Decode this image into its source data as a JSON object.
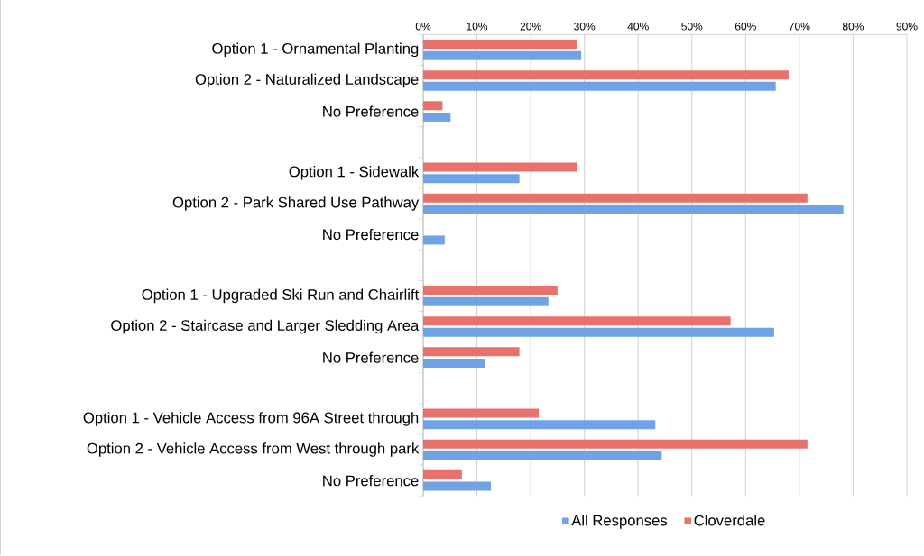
{
  "chart_data": {
    "type": "bar",
    "orientation": "horizontal",
    "categories": [
      "Option 1 - Ornamental Planting",
      "Option 2 - Naturalized Landscape",
      "No Preference",
      null,
      "Option 1 - Sidewalk",
      "Option 2 - Park Shared Use Pathway",
      "No Preference",
      null,
      "Option 1 - Upgraded Ski Run and Chairlift",
      "Option 2 - Staircase and Larger Sledding Area",
      "No Preference",
      null,
      "Option 1 - Vehicle Access from 96A Street through",
      "Option 2 - Vehicle Access from West through park",
      "No Preference"
    ],
    "series": [
      {
        "name": "All Responses",
        "color": "#6fa3e6",
        "values": [
          29.4,
          65.6,
          5.1,
          null,
          17.9,
          78.2,
          4.0,
          null,
          23.3,
          65.3,
          11.5,
          null,
          43.2,
          44.4,
          12.6
        ]
      },
      {
        "name": "Cloverdale",
        "color": "#e8716c",
        "values": [
          28.6,
          68.0,
          3.6,
          null,
          28.6,
          71.5,
          0,
          null,
          25.0,
          57.2,
          17.9,
          null,
          21.5,
          71.5,
          7.2
        ]
      }
    ],
    "xlim": [
      0,
      90
    ],
    "xticks": [
      {
        "value": 0,
        "label": "0%"
      },
      {
        "value": 10,
        "label": "10%"
      },
      {
        "value": 20,
        "label": "20%"
      },
      {
        "value": 30,
        "label": "30%"
      },
      {
        "value": 40,
        "label": "40%"
      },
      {
        "value": 50,
        "label": "50%"
      },
      {
        "value": 60,
        "label": "60%"
      },
      {
        "value": 70,
        "label": "70%"
      },
      {
        "value": 80,
        "label": "80%"
      },
      {
        "value": 90,
        "label": "90%"
      }
    ],
    "grid": "x",
    "legend": "bottom"
  }
}
